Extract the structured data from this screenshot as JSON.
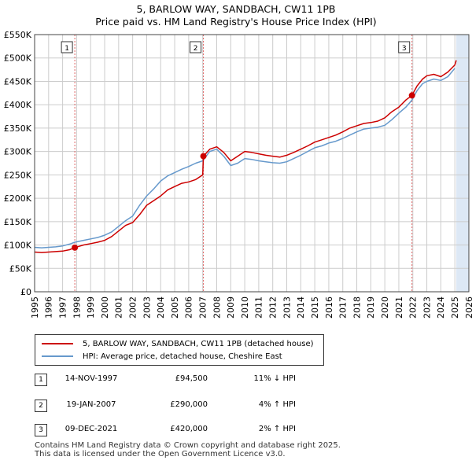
{
  "header": {
    "title": "5, BARLOW WAY, SANDBACH, CW11 1PB",
    "subtitle": "Price paid vs. HM Land Registry's House Price Index (HPI)"
  },
  "colors": {
    "property": "#cc0000",
    "hpi": "#6699cc",
    "shade": "#dde8f5",
    "grid": "#cccccc",
    "marker_line": "#e06666"
  },
  "chart_data": {
    "type": "line",
    "title": "5, BARLOW WAY, SANDBACH, CW11 1PB",
    "subtitle": "Price paid vs. HM Land Registry's House Price Index (HPI)",
    "xlabel": "",
    "ylabel": "",
    "xlim": [
      1995,
      2026
    ],
    "ylim": [
      0,
      550000
    ],
    "y_ticks": [
      0,
      50000,
      100000,
      150000,
      200000,
      250000,
      300000,
      350000,
      400000,
      450000,
      500000,
      550000
    ],
    "y_tick_labels": [
      "£0",
      "£50K",
      "£100K",
      "£150K",
      "£200K",
      "£250K",
      "£300K",
      "£350K",
      "£400K",
      "£450K",
      "£500K",
      "£550K"
    ],
    "x_ticks": [
      1995,
      1996,
      1997,
      1998,
      1999,
      2000,
      2001,
      2002,
      2003,
      2004,
      2005,
      2006,
      2007,
      2008,
      2009,
      2010,
      2011,
      2012,
      2013,
      2014,
      2015,
      2016,
      2017,
      2018,
      2019,
      2020,
      2021,
      2022,
      2023,
      2024,
      2025,
      2026
    ],
    "x_tick_labels": [
      "1995",
      "1996",
      "1997",
      "1998",
      "1999",
      "2000",
      "2001",
      "2002",
      "2003",
      "2004",
      "2005",
      "2006",
      "2007",
      "2008",
      "2009",
      "2010",
      "2011",
      "2012",
      "2013",
      "2014",
      "2015",
      "2016",
      "2017",
      "2018",
      "2019",
      "2020",
      "2021",
      "2022",
      "2023",
      "2024",
      "2025",
      "2026"
    ],
    "grid": true,
    "legend_position": "below",
    "series": [
      {
        "name": "5, BARLOW WAY, SANDBACH, CW11 1PB (detached house)",
        "color": "#cc0000",
        "x": [
          1995.0,
          1995.5,
          1996.0,
          1996.5,
          1997.0,
          1997.5,
          1997.87,
          1998.5,
          1999.0,
          1999.5,
          2000.0,
          2000.5,
          2001.0,
          2001.5,
          2002.0,
          2002.5,
          2003.0,
          2003.5,
          2004.0,
          2004.5,
          2005.0,
          2005.5,
          2006.0,
          2006.5,
          2007.0,
          2007.05,
          2007.5,
          2008.0,
          2008.5,
          2009.0,
          2009.5,
          2010.0,
          2010.5,
          2011.0,
          2011.5,
          2012.0,
          2012.5,
          2013.0,
          2013.5,
          2014.0,
          2014.5,
          2015.0,
          2015.5,
          2016.0,
          2016.5,
          2017.0,
          2017.5,
          2018.0,
          2018.5,
          2019.0,
          2019.5,
          2020.0,
          2020.5,
          2021.0,
          2021.5,
          2021.94,
          2022.3,
          2022.7,
          2023.0,
          2023.5,
          2024.0,
          2024.5,
          2025.0,
          2025.1
        ],
        "values": [
          85000,
          84000,
          85000,
          86000,
          87000,
          90000,
          94500,
          100000,
          103000,
          106000,
          110000,
          118000,
          130000,
          142000,
          148000,
          165000,
          185000,
          195000,
          205000,
          218000,
          225000,
          232000,
          235000,
          240000,
          250000,
          290000,
          305000,
          310000,
          298000,
          280000,
          290000,
          300000,
          298000,
          295000,
          292000,
          290000,
          288000,
          292000,
          298000,
          305000,
          312000,
          320000,
          325000,
          330000,
          335000,
          342000,
          350000,
          355000,
          360000,
          362000,
          365000,
          372000,
          385000,
          395000,
          410000,
          420000,
          440000,
          455000,
          462000,
          465000,
          460000,
          470000,
          485000,
          495000
        ]
      },
      {
        "name": "HPI: Average price, detached house, Cheshire East",
        "color": "#6699cc",
        "x": [
          1995.0,
          1995.5,
          1996.0,
          1996.5,
          1997.0,
          1997.5,
          1997.87,
          1998.5,
          1999.0,
          1999.5,
          2000.0,
          2000.5,
          2001.0,
          2001.5,
          2002.0,
          2002.5,
          2003.0,
          2003.5,
          2004.0,
          2004.5,
          2005.0,
          2005.5,
          2006.0,
          2006.5,
          2007.0,
          2007.5,
          2008.0,
          2008.5,
          2009.0,
          2009.5,
          2010.0,
          2010.5,
          2011.0,
          2011.5,
          2012.0,
          2012.5,
          2013.0,
          2013.5,
          2014.0,
          2014.5,
          2015.0,
          2015.5,
          2016.0,
          2016.5,
          2017.0,
          2017.5,
          2018.0,
          2018.5,
          2019.0,
          2019.5,
          2020.0,
          2020.5,
          2021.0,
          2021.5,
          2021.94,
          2022.3,
          2022.7,
          2023.0,
          2023.5,
          2024.0,
          2024.5,
          2025.0
        ],
        "values": [
          95000,
          94000,
          95000,
          96000,
          98000,
          102000,
          106000,
          110000,
          113000,
          116000,
          121000,
          128000,
          140000,
          152000,
          162000,
          185000,
          205000,
          220000,
          237000,
          248000,
          255000,
          262000,
          268000,
          275000,
          280000,
          300000,
          305000,
          290000,
          270000,
          275000,
          285000,
          283000,
          280000,
          278000,
          276000,
          275000,
          278000,
          285000,
          292000,
          300000,
          308000,
          312000,
          318000,
          322000,
          328000,
          335000,
          342000,
          348000,
          350000,
          352000,
          356000,
          368000,
          382000,
          395000,
          410000,
          430000,
          445000,
          450000,
          455000,
          452000,
          460000,
          478000
        ]
      }
    ],
    "sale_markers": [
      {
        "label": "1",
        "x": 1997.87,
        "value": 94500
      },
      {
        "label": "2",
        "x": 2007.05,
        "value": 290000
      },
      {
        "label": "3",
        "x": 2021.94,
        "value": 420000
      }
    ],
    "shaded_range": [
      2025.1,
      2026
    ]
  },
  "legend": {
    "property": "5, BARLOW WAY, SANDBACH, CW11 1PB (detached house)",
    "hpi": "HPI: Average price, detached house, Cheshire East"
  },
  "sales": [
    {
      "num": "1",
      "date": "14-NOV-1997",
      "price": "£94,500",
      "hpi": "11% ↓ HPI"
    },
    {
      "num": "2",
      "date": "19-JAN-2007",
      "price": "£290,000",
      "hpi": "4% ↑ HPI"
    },
    {
      "num": "3",
      "date": "09-DEC-2021",
      "price": "£420,000",
      "hpi": "2% ↑ HPI"
    }
  ],
  "footer": {
    "line1": "Contains HM Land Registry data © Crown copyright and database right 2025.",
    "line2": "This data is licensed under the Open Government Licence v3.0."
  }
}
